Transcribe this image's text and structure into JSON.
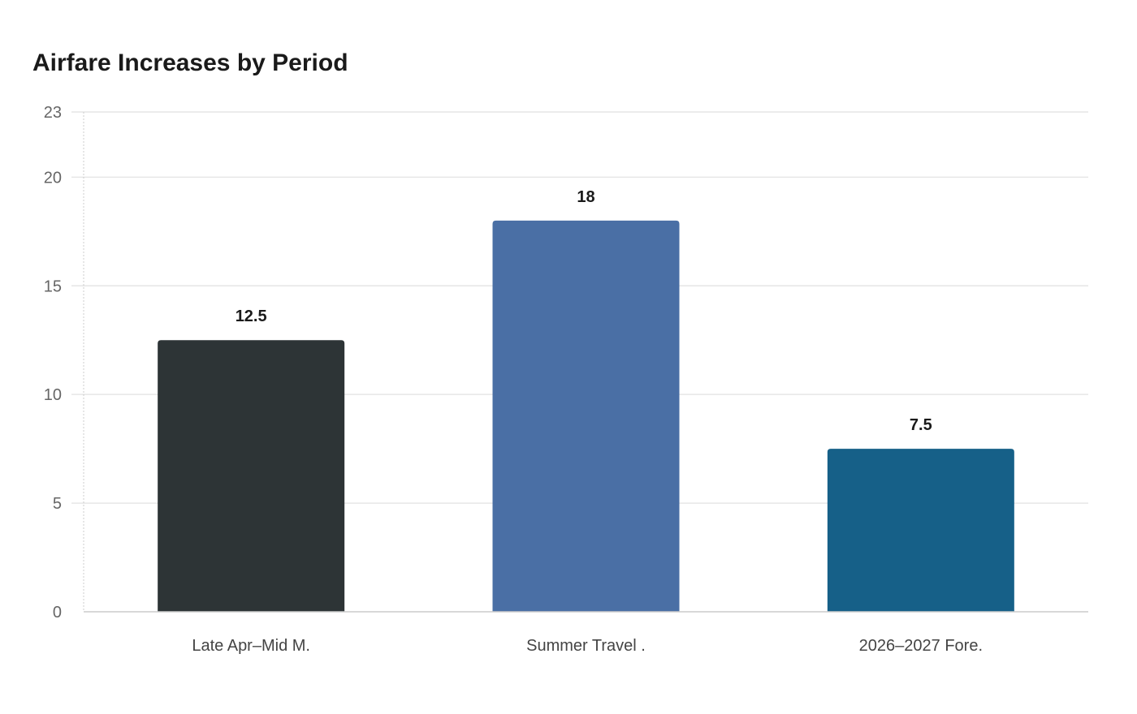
{
  "chart_data": {
    "type": "bar",
    "title": "Airfare Increases by Period",
    "xlabel": "",
    "ylabel": "",
    "categories": [
      "Late Apr–Mid M.",
      "Summer Travel .",
      "2026–2027 Fore."
    ],
    "values": [
      12.5,
      18,
      7.5
    ],
    "data_labels": [
      "12.5",
      "18",
      "7.5"
    ],
    "colors": [
      "#2d3436",
      "#4a6fa5",
      "#166088"
    ],
    "ylim": [
      0,
      23
    ],
    "yticks": [
      0,
      5,
      10,
      15,
      20,
      23
    ],
    "grid": true,
    "legend": "none"
  }
}
